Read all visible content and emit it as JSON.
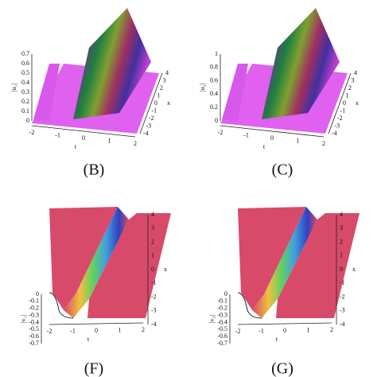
{
  "panels": [
    {
      "caption": "(B)",
      "z_label": "|u₁|",
      "z_ticks": [
        "0",
        "0.1",
        "0.2",
        "0.3",
        "0.4",
        "0.5",
        "0.6",
        "0.7"
      ],
      "t_ticks": [
        "-2",
        "-1",
        "0",
        "1",
        "2"
      ],
      "t_label": "t",
      "x_ticks": [
        "-4",
        "-3",
        "-2",
        "-1",
        "0",
        "1",
        "2",
        "3",
        "4"
      ],
      "x_label": "x"
    },
    {
      "caption": "(C)",
      "z_label": "|u₂|",
      "z_ticks": [
        "0",
        "0.2",
        "0.4",
        "0.6",
        "0.8",
        "1"
      ],
      "t_ticks": [
        "-2",
        "-1",
        "0",
        "1",
        "2"
      ],
      "t_label": "t",
      "x_ticks": [
        "-4",
        "-3",
        "-2",
        "-1",
        "0",
        "1",
        "2",
        "3",
        "4"
      ],
      "x_label": "x"
    },
    {
      "caption": "(F)",
      "z_label": "|v₁|",
      "z_ticks": [
        "0",
        "-0.1",
        "-0.2",
        "-0.3",
        "-0.4",
        "-0.5",
        "-0.6",
        "-0.7"
      ],
      "t_ticks": [
        "-2",
        "-1",
        "0",
        "1",
        "2"
      ],
      "t_label": "t",
      "x_ticks": [
        "4",
        "3",
        "2",
        "1",
        "0",
        "-1",
        "-2",
        "-3",
        "-4"
      ],
      "x_label": "x"
    },
    {
      "caption": "(G)",
      "z_label": "|v₂|",
      "z_ticks": [
        "0",
        "-0.1",
        "-0.2",
        "-0.3",
        "-0.4",
        "-0.5",
        "-0.6",
        "-0.7"
      ],
      "t_ticks": [
        "-2",
        "-1",
        "0",
        "1",
        "2"
      ],
      "t_label": "t",
      "x_ticks": [
        "4",
        "3",
        "2",
        "1",
        "0",
        "-1",
        "-2",
        "-3",
        "-4"
      ],
      "x_label": "x"
    }
  ]
}
